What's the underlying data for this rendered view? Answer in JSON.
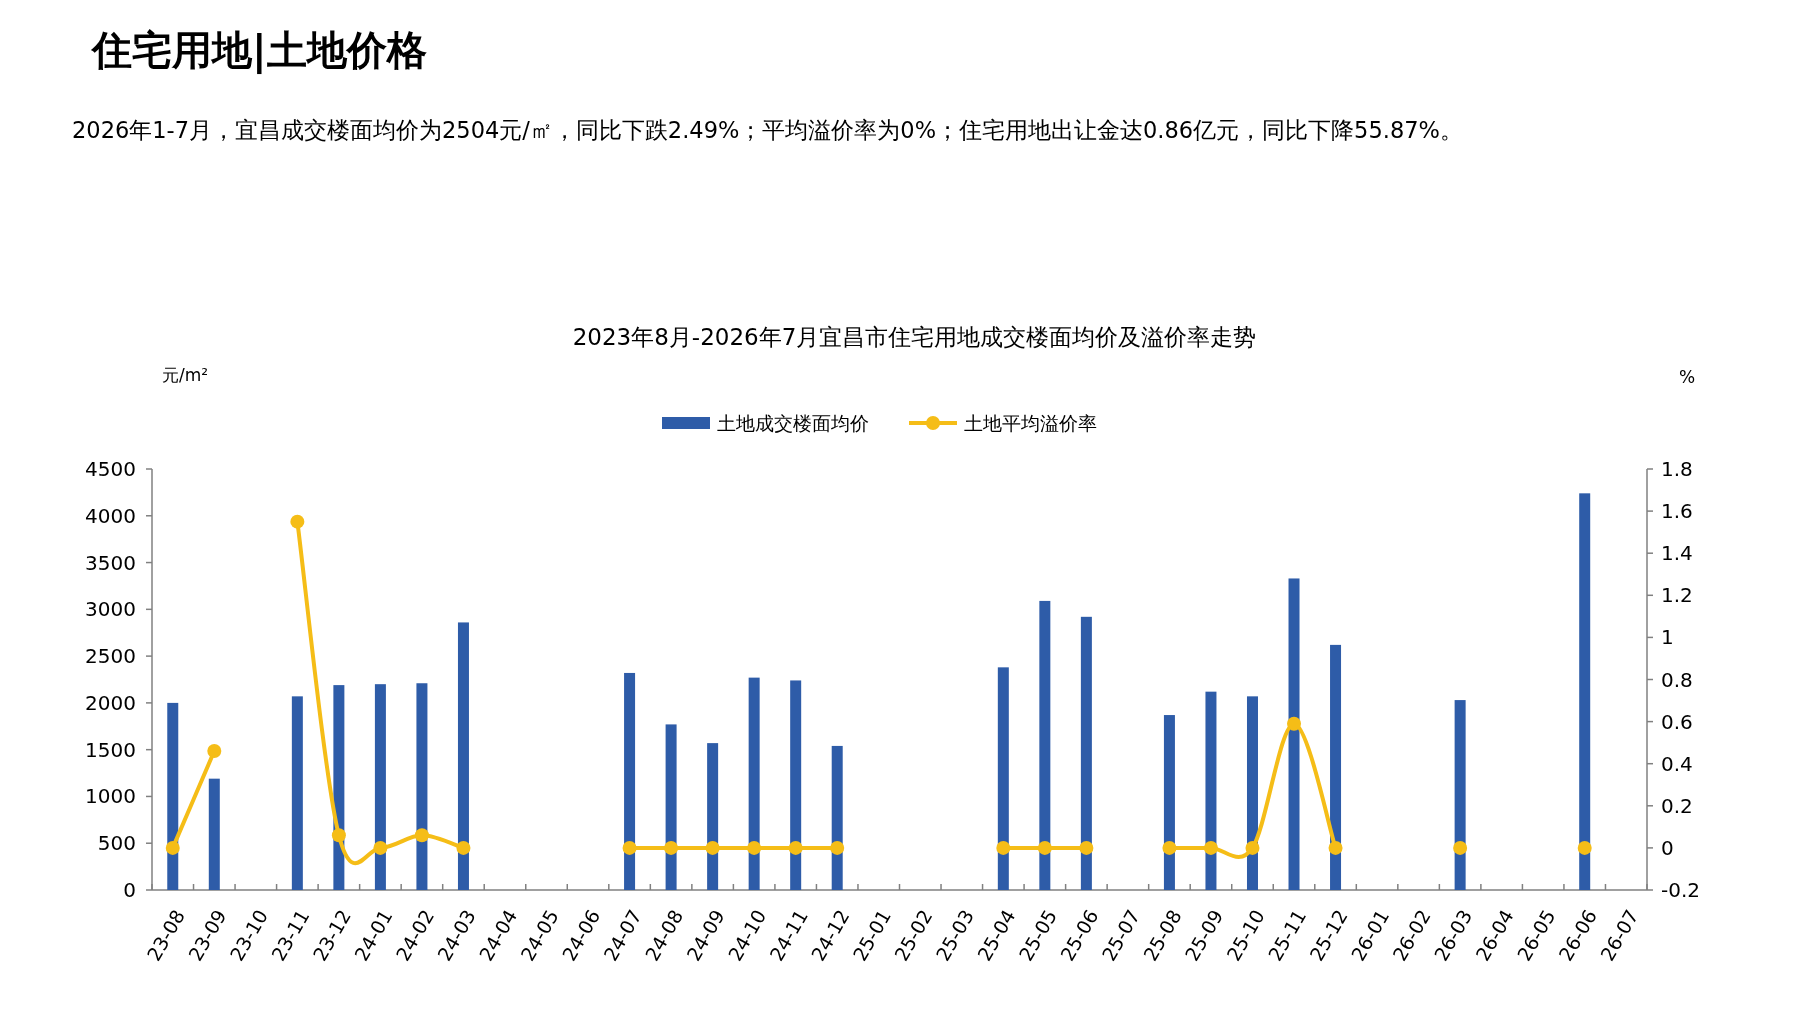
{
  "chart_data": {
    "type": "bar",
    "title": "2023年8月-2026年7月宜昌市住宅用地成交楼面均价及溢价率走势",
    "subtitle": "住宅用地|土地价格",
    "annotations": [
      "2026年1-7月，宜昌成交楼面均价为2504元/㎡，同比下跌2.49%；平均溢价率为0%；住宅用地出让金达0.86亿元，同比下降55.87%。"
    ],
    "ylabel": "元/m²",
    "y2label": "%",
    "categories": [
      "23-08",
      "23-09",
      "23-10",
      "23-11",
      "23-12",
      "24-01",
      "24-02",
      "24-03",
      "24-04",
      "24-05",
      "24-06",
      "24-07",
      "24-08",
      "24-09",
      "24-10",
      "24-11",
      "24-12",
      "25-01",
      "25-02",
      "25-03",
      "25-04",
      "25-05",
      "25-06",
      "25-07",
      "25-08",
      "25-09",
      "25-10",
      "25-11",
      "25-12",
      "26-01",
      "26-02",
      "26-03",
      "26-04",
      "26-05",
      "26-06",
      "26-07"
    ],
    "series": [
      {
        "name": "土地成交楼面均价",
        "color": "#2e5ca8",
        "values": [
          2000,
          1190,
          null,
          2070,
          2190,
          2200,
          2210,
          2860,
          null,
          null,
          null,
          2320,
          1770,
          1570,
          2270,
          2240,
          1540,
          null,
          null,
          null,
          2380,
          3090,
          2920,
          null,
          1870,
          2120,
          2070,
          3330,
          2620,
          null,
          null,
          2030,
          null,
          null,
          4240,
          null
        ]
      },
      {
        "name": "土地平均溢价率",
        "type": "line",
        "axis": "y2",
        "color": "#f5bd17",
        "marker": "circle",
        "values": [
          0,
          0.46,
          null,
          1.55,
          0.06,
          0,
          0.06,
          0,
          null,
          null,
          null,
          0,
          0,
          0,
          0,
          0,
          0,
          null,
          null,
          null,
          0,
          0,
          0,
          null,
          0,
          0,
          0,
          0.59,
          0,
          null,
          null,
          0,
          null,
          null,
          0,
          null
        ]
      }
    ],
    "ylim": [
      0,
      4500
    ],
    "yticks": [
      0,
      500,
      1000,
      1500,
      2000,
      2500,
      3000,
      3500,
      4000,
      4500
    ],
    "y2lim": [
      -0.2,
      1.8
    ],
    "y2ticks": [
      -0.2,
      0,
      0.2,
      0.4,
      0.6,
      0.8,
      1,
      1.2,
      1.4,
      1.6,
      1.8
    ],
    "grid": false,
    "legend": "top"
  }
}
